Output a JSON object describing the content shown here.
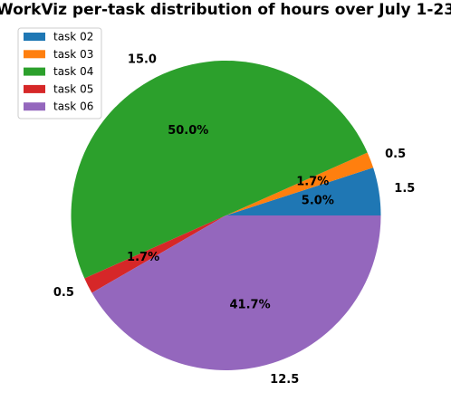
{
  "chart_data": {
    "type": "pie",
    "title": "WorkViz per-task distribution of hours over July 1-23",
    "categories": [
      "task 02",
      "task 03",
      "task 04",
      "task 05",
      "task 06"
    ],
    "values": [
      1.5,
      0.5,
      15.0,
      0.5,
      12.5
    ],
    "value_labels": [
      "1.5",
      "0.5",
      "15.0",
      "0.5",
      "12.5"
    ],
    "percent_labels": [
      "5.0%",
      "1.7%",
      "50.0%",
      "1.7%",
      "41.7%"
    ],
    "colors": [
      "#1f77b4",
      "#ff7f0e",
      "#2ca02c",
      "#d62728",
      "#9467bd"
    ],
    "start_angle": 0,
    "direction": "counterclockwise",
    "legend_position": "top-left"
  }
}
